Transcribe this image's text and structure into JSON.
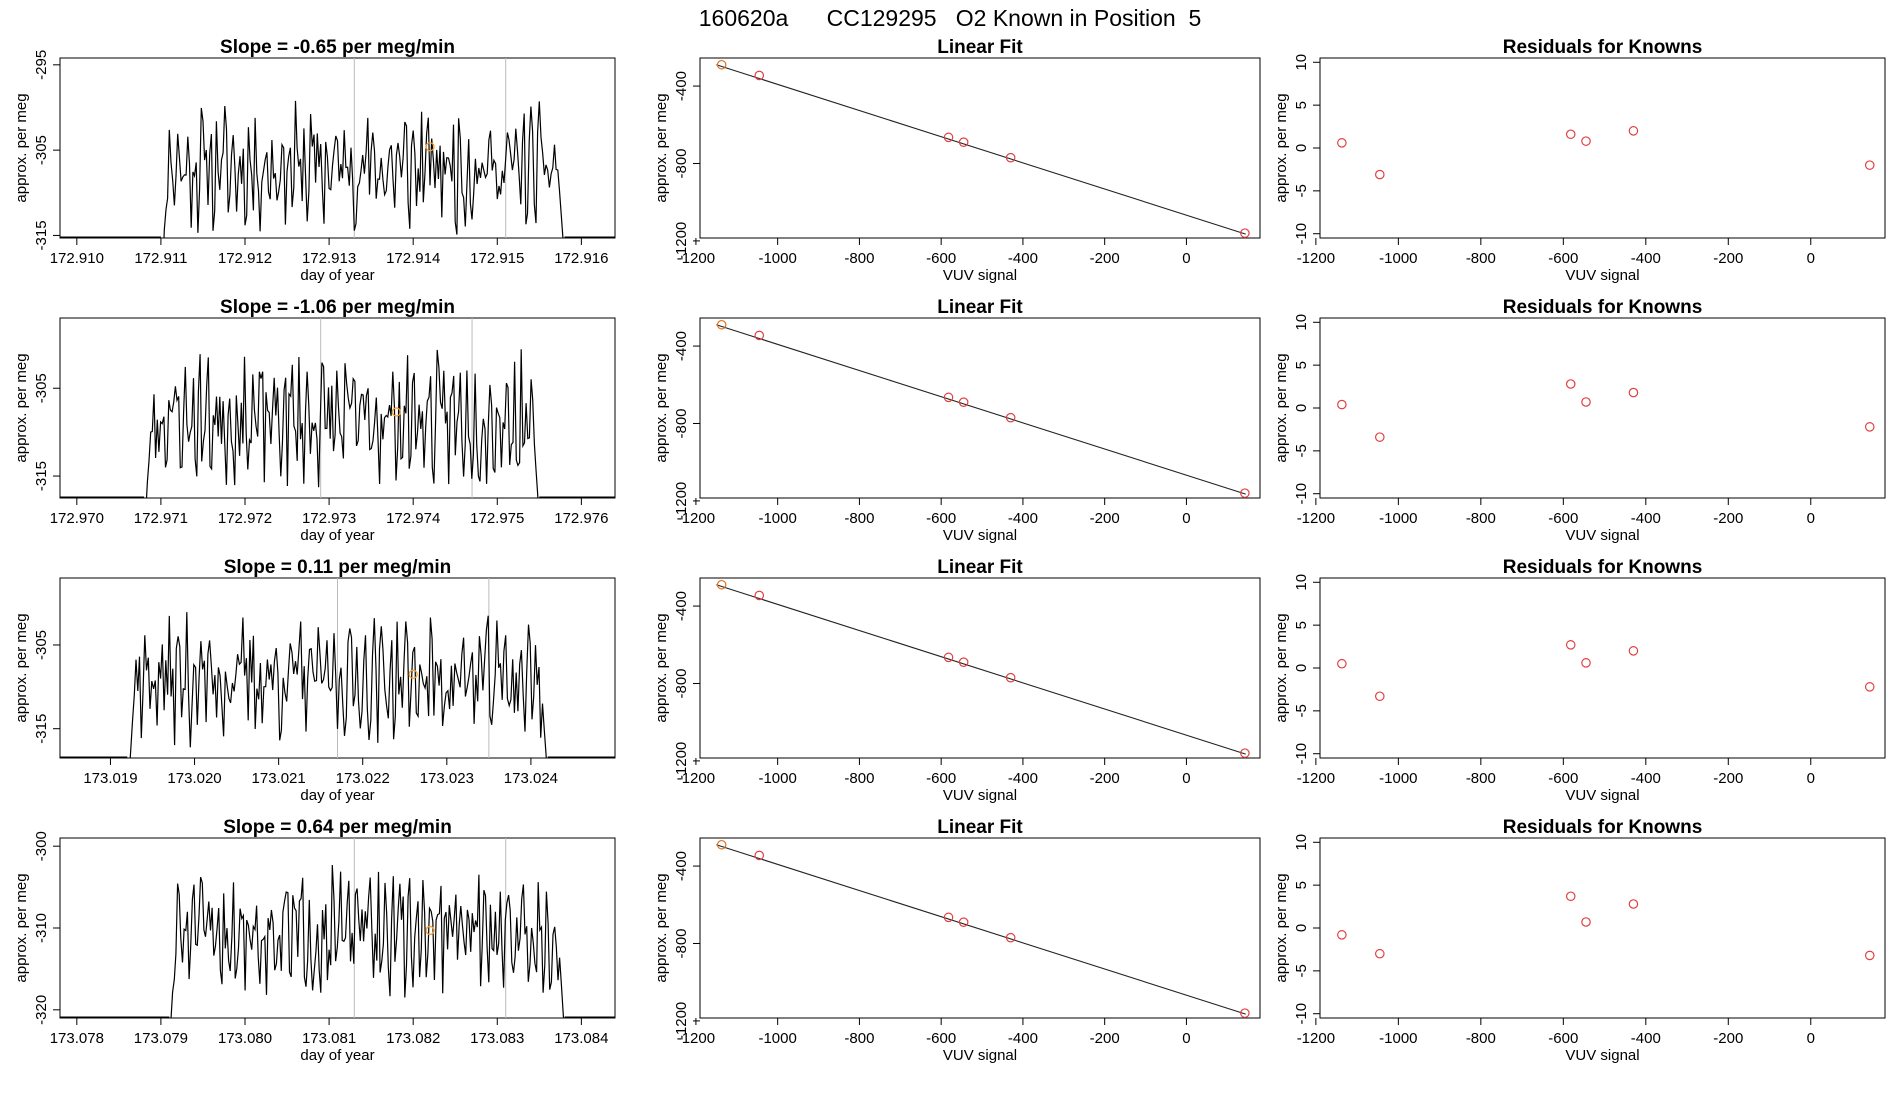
{
  "figure": {
    "title": "160620a      CC129295   O2 Known in Position  5"
  },
  "chart_data": [
    {
      "type": "line",
      "title": "Slope =  -0.65  per meg/min",
      "xlabel": "day of year",
      "ylabel": "approx. per meg",
      "xlim": [
        172.9098,
        172.9164
      ],
      "ylim": [
        -315.3,
        -294.2
      ],
      "xticks": [
        "172.910",
        "172.911",
        "172.912",
        "172.913",
        "172.914",
        "172.915",
        "172.916"
      ],
      "yticks": [
        "-295",
        "-305",
        "-315"
      ],
      "window_start": 172.911,
      "window_end": 172.9158,
      "vlines": [
        172.9133,
        172.9151
      ],
      "mean_point": {
        "x": 172.9142,
        "y": -304.6
      },
      "series_seed": 11,
      "y_base": -307.0,
      "y_amp": 5.5,
      "y_first": -321,
      "y_last": -318
    },
    {
      "type": "scatter",
      "title": "Linear Fit",
      "xlabel": "VUV signal",
      "ylabel": "approx. per meg",
      "xlim": [
        -1190,
        180
      ],
      "ylim": [
        -1185,
        -255
      ],
      "xticks": [
        "-1200",
        "-1000",
        "-800",
        "-600",
        "-400",
        "-200",
        "0"
      ],
      "yticks": [
        "-400",
        "-800",
        "-1200"
      ],
      "fit_line": {
        "x": [
          -1150,
          145
        ],
        "y": [
          -290,
          -1165
        ]
      },
      "points_x": [
        -1137,
        -1045,
        -582,
        -545,
        -430,
        143
      ],
      "points_y": [
        -290,
        -345,
        -665,
        -690,
        -770,
        -1160
      ]
    },
    {
      "type": "scatter",
      "title": "Residuals for Knowns",
      "xlabel": "VUV signal",
      "ylabel": "approx. per meg",
      "xlim": [
        -1190,
        180
      ],
      "ylim": [
        -10.5,
        10.5
      ],
      "xticks": [
        "-1200",
        "-1000",
        "-800",
        "-600",
        "-400",
        "-200",
        "0"
      ],
      "yticks": [
        "-10",
        "-5",
        "0",
        "5",
        "10"
      ],
      "points_x": [
        -1137,
        -1045,
        -582,
        -545,
        -430,
        143
      ],
      "points_y": [
        0.6,
        -3.1,
        1.6,
        0.8,
        2.0,
        -2.0
      ]
    },
    {
      "type": "line",
      "title": "Slope =  -1.06  per meg/min",
      "xlabel": "day of year",
      "ylabel": "approx. per meg",
      "xlim": [
        172.9698,
        172.9764
      ],
      "ylim": [
        -317.5,
        -297.0
      ],
      "xticks": [
        "172.970",
        "172.971",
        "172.972",
        "172.973",
        "172.974",
        "172.975",
        "172.976"
      ],
      "yticks": [
        "-305",
        "-315"
      ],
      "window_start": 172.9708,
      "window_end": 172.9755,
      "vlines": [
        172.9729,
        172.9747
      ],
      "mean_point": {
        "x": 172.9738,
        "y": -307.7
      },
      "series_seed": 23,
      "y_base": -308.5,
      "y_amp": 5.5,
      "y_first": -322,
      "y_last": -320
    },
    {
      "type": "scatter",
      "title": "Linear Fit",
      "xlabel": "VUV signal",
      "ylabel": "approx. per meg",
      "xlim": [
        -1190,
        180
      ],
      "ylim": [
        -1185,
        -255
      ],
      "xticks": [
        "-1200",
        "-1000",
        "-800",
        "-600",
        "-400",
        "-200",
        "0"
      ],
      "yticks": [
        "-400",
        "-800",
        "-1200"
      ],
      "fit_line": {
        "x": [
          -1150,
          145
        ],
        "y": [
          -290,
          -1165
        ]
      },
      "points_x": [
        -1137,
        -1045,
        -582,
        -545,
        -430,
        143
      ],
      "points_y": [
        -290,
        -345,
        -665,
        -690,
        -770,
        -1160
      ]
    },
    {
      "type": "scatter",
      "title": "Residuals for Knowns",
      "xlabel": "VUV signal",
      "ylabel": "approx. per meg",
      "xlim": [
        -1190,
        180
      ],
      "ylim": [
        -10.5,
        10.5
      ],
      "xticks": [
        "-1200",
        "-1000",
        "-800",
        "-600",
        "-400",
        "-200",
        "0"
      ],
      "yticks": [
        "-10",
        "-5",
        "0",
        "5",
        "10"
      ],
      "points_x": [
        -1137,
        -1045,
        -582,
        -545,
        -430,
        143
      ],
      "points_y": [
        0.4,
        -3.4,
        2.8,
        0.7,
        1.8,
        -2.2
      ]
    },
    {
      "type": "line",
      "title": "Slope =  0.11  per meg/min",
      "xlabel": "day of year",
      "ylabel": "approx. per meg",
      "xlim": [
        173.0184,
        173.025
      ],
      "ylim": [
        -318.5,
        -297.0
      ],
      "xticks": [
        "173.019",
        "173.020",
        "173.021",
        "173.022",
        "173.023",
        "173.024"
      ],
      "yticks": [
        "-305",
        "-315"
      ],
      "window_start": 173.0192,
      "window_end": 173.0242,
      "vlines": [
        173.0217,
        173.0235
      ],
      "mean_point": {
        "x": 173.0226,
        "y": -308.5
      },
      "series_seed": 37,
      "y_base": -309.0,
      "y_amp": 5.5,
      "y_first": -322,
      "y_last": -321
    },
    {
      "type": "scatter",
      "title": "Linear Fit",
      "xlabel": "VUV signal",
      "ylabel": "approx. per meg",
      "xlim": [
        -1190,
        180
      ],
      "ylim": [
        -1185,
        -255
      ],
      "xticks": [
        "-1200",
        "-1000",
        "-800",
        "-600",
        "-400",
        "-200",
        "0"
      ],
      "yticks": [
        "-400",
        "-800",
        "-1200"
      ],
      "fit_line": {
        "x": [
          -1150,
          145
        ],
        "y": [
          -290,
          -1165
        ]
      },
      "points_x": [
        -1137,
        -1045,
        -582,
        -545,
        -430,
        143
      ],
      "points_y": [
        -290,
        -345,
        -665,
        -690,
        -770,
        -1160
      ]
    },
    {
      "type": "scatter",
      "title": "Residuals for Knowns",
      "xlabel": "VUV signal",
      "ylabel": "approx. per meg",
      "xlim": [
        -1190,
        180
      ],
      "ylim": [
        -10.5,
        10.5
      ],
      "xticks": [
        "-1200",
        "-1000",
        "-800",
        "-600",
        "-400",
        "-200",
        "0"
      ],
      "yticks": [
        "-10",
        "-5",
        "0",
        "5",
        "10"
      ],
      "points_x": [
        -1137,
        -1045,
        -582,
        -545,
        -430,
        143
      ],
      "points_y": [
        0.5,
        -3.3,
        2.7,
        0.6,
        2.0,
        -2.2
      ]
    },
    {
      "type": "line",
      "title": "Slope =  0.64  per meg/min",
      "xlabel": "day of year",
      "ylabel": "approx. per meg",
      "xlim": [
        173.0778,
        173.0844
      ],
      "ylim": [
        -321.0,
        -299.0
      ],
      "xticks": [
        "173.078",
        "173.079",
        "173.080",
        "173.081",
        "173.082",
        "173.083",
        "173.084"
      ],
      "yticks": [
        "-300",
        "-310",
        "-320"
      ],
      "window_start": 173.0791,
      "window_end": 173.0838,
      "vlines": [
        173.0813,
        173.0831
      ],
      "mean_point": {
        "x": 173.0822,
        "y": -310.3
      },
      "series_seed": 51,
      "y_base": -310.5,
      "y_amp": 5.5,
      "y_first": -324,
      "y_last": -323
    },
    {
      "type": "scatter",
      "title": "Linear Fit",
      "xlabel": "VUV signal",
      "ylabel": "approx. per meg",
      "xlim": [
        -1190,
        180
      ],
      "ylim": [
        -1185,
        -255
      ],
      "xticks": [
        "-1200",
        "-1000",
        "-800",
        "-600",
        "-400",
        "-200",
        "0"
      ],
      "yticks": [
        "-400",
        "-800",
        "-1200"
      ],
      "fit_line": {
        "x": [
          -1150,
          145
        ],
        "y": [
          -290,
          -1165
        ]
      },
      "points_x": [
        -1137,
        -1045,
        -582,
        -545,
        -430,
        143
      ],
      "points_y": [
        -290,
        -345,
        -665,
        -690,
        -770,
        -1160
      ]
    },
    {
      "type": "scatter",
      "title": "Residuals for Knowns",
      "xlabel": "VUV signal",
      "ylabel": "approx. per meg",
      "xlim": [
        -1190,
        180
      ],
      "ylim": [
        -10.5,
        10.5
      ],
      "xticks": [
        "-1200",
        "-1000",
        "-800",
        "-600",
        "-400",
        "-200",
        "0"
      ],
      "yticks": [
        "-10",
        "-5",
        "0",
        "5",
        "10"
      ],
      "points_x": [
        -1137,
        -1045,
        -582,
        -545,
        -430,
        143
      ],
      "points_y": [
        -0.8,
        -3.0,
        3.7,
        0.7,
        2.8,
        -3.2
      ]
    }
  ],
  "colors": {
    "line": "#000000",
    "mean_point": "#f0a030",
    "fit_point": "#e07020",
    "residual": "#e04040",
    "vline": "#bbbbbb"
  }
}
